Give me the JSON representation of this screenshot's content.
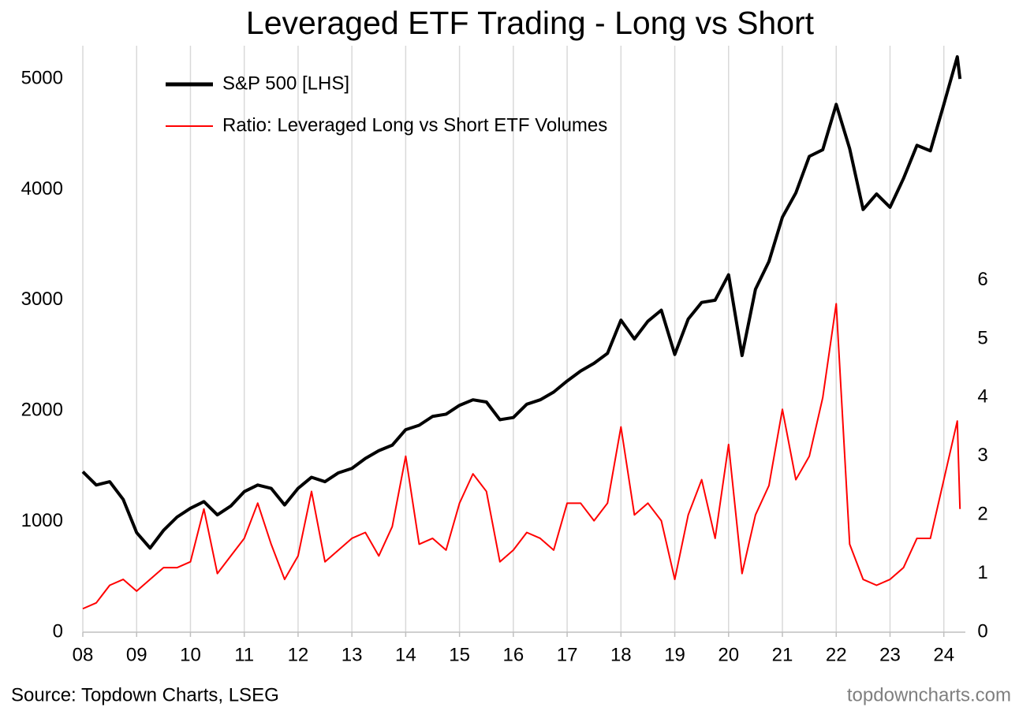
{
  "chart_data": {
    "type": "line",
    "title": "Leveraged ETF Trading - Long vs Short",
    "source": "Source: Topdown Charts, LSEG",
    "watermark": "topdowncharts.com",
    "x": [
      2008.0,
      2008.25,
      2008.5,
      2008.75,
      2009.0,
      2009.25,
      2009.5,
      2009.75,
      2010.0,
      2010.25,
      2010.5,
      2010.75,
      2011.0,
      2011.25,
      2011.5,
      2011.75,
      2012.0,
      2012.25,
      2012.5,
      2012.75,
      2013.0,
      2013.25,
      2013.5,
      2013.75,
      2014.0,
      2014.25,
      2014.5,
      2014.75,
      2015.0,
      2015.25,
      2015.5,
      2015.75,
      2016.0,
      2016.25,
      2016.5,
      2016.75,
      2017.0,
      2017.25,
      2017.5,
      2017.75,
      2018.0,
      2018.25,
      2018.5,
      2018.75,
      2019.0,
      2019.25,
      2019.5,
      2019.75,
      2020.0,
      2020.25,
      2020.5,
      2020.75,
      2021.0,
      2021.25,
      2021.5,
      2021.75,
      2022.0,
      2022.25,
      2022.5,
      2022.75,
      2023.0,
      2023.25,
      2023.5,
      2023.75,
      2024.0,
      2024.25,
      2024.3
    ],
    "series": [
      {
        "name": "S&P 500 [LHS]",
        "color": "#000000",
        "axis": "y",
        "values": [
          1450,
          1330,
          1360,
          1200,
          900,
          760,
          920,
          1040,
          1120,
          1180,
          1060,
          1140,
          1270,
          1330,
          1300,
          1150,
          1300,
          1400,
          1360,
          1440,
          1480,
          1570,
          1640,
          1690,
          1830,
          1870,
          1950,
          1970,
          2050,
          2100,
          2080,
          1920,
          1940,
          2060,
          2100,
          2170,
          2270,
          2360,
          2430,
          2520,
          2820,
          2650,
          2810,
          2910,
          2510,
          2830,
          2980,
          3000,
          3230,
          2500,
          3100,
          3350,
          3750,
          3970,
          4300,
          4360,
          4770,
          4370,
          3820,
          3960,
          3840,
          4100,
          4400,
          4350,
          4770,
          5200,
          5000
        ]
      },
      {
        "name": "Ratio: Leveraged Long vs Short ETF Volumes",
        "color": "#ff0000",
        "axis": "y2",
        "values": [
          0.4,
          0.5,
          0.8,
          0.9,
          0.7,
          0.9,
          1.1,
          1.1,
          1.2,
          2.1,
          1.0,
          1.3,
          1.6,
          2.2,
          1.5,
          0.9,
          1.3,
          2.4,
          1.2,
          1.4,
          1.6,
          1.7,
          1.3,
          1.8,
          3.0,
          1.5,
          1.6,
          1.4,
          2.2,
          2.7,
          2.4,
          1.2,
          1.4,
          1.7,
          1.6,
          1.4,
          2.2,
          2.2,
          1.9,
          2.2,
          3.5,
          2.0,
          2.2,
          1.9,
          0.9,
          2.0,
          2.6,
          1.6,
          3.2,
          1.0,
          2.0,
          2.5,
          3.8,
          2.6,
          3.0,
          4.0,
          5.6,
          1.5,
          0.9,
          0.8,
          0.9,
          1.1,
          1.6,
          1.6,
          2.6,
          3.6,
          2.1
        ]
      }
    ],
    "xlim": [
      2008,
      2024.4
    ],
    "xticks": [
      {
        "value": 2008,
        "label": "08"
      },
      {
        "value": 2009,
        "label": "09"
      },
      {
        "value": 2010,
        "label": "10"
      },
      {
        "value": 2011,
        "label": "11"
      },
      {
        "value": 2012,
        "label": "12"
      },
      {
        "value": 2013,
        "label": "13"
      },
      {
        "value": 2014,
        "label": "14"
      },
      {
        "value": 2015,
        "label": "15"
      },
      {
        "value": 2016,
        "label": "16"
      },
      {
        "value": 2017,
        "label": "17"
      },
      {
        "value": 2018,
        "label": "18"
      },
      {
        "value": 2019,
        "label": "19"
      },
      {
        "value": 2020,
        "label": "20"
      },
      {
        "value": 2021,
        "label": "21"
      },
      {
        "value": 2022,
        "label": "22"
      },
      {
        "value": 2023,
        "label": "23"
      },
      {
        "value": 2024,
        "label": "24"
      }
    ],
    "ylim": [
      0,
      5300
    ],
    "yticks": [
      0,
      1000,
      2000,
      3000,
      4000,
      5000
    ],
    "y2lim": [
      0,
      10
    ],
    "y2ticks": [
      0,
      1,
      2,
      3,
      4,
      5,
      6
    ],
    "grid": true
  }
}
